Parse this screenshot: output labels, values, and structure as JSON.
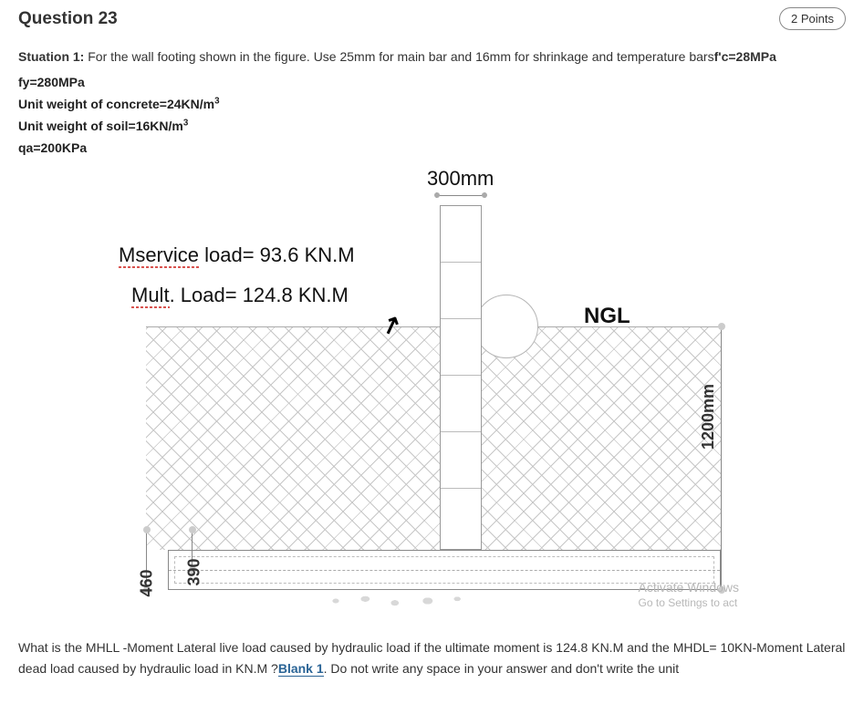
{
  "colors": {
    "text": "#333333",
    "heading": "#333333",
    "badge_border": "#888888",
    "wavy_red": "#d9534f",
    "link_blue": "#2a6496",
    "diagram_line": "#888888",
    "diagram_light": "#bbbbbb",
    "watermark": "#b8b8b8",
    "background": "#ffffff"
  },
  "header": {
    "title": "Question 23",
    "points": "2 Points"
  },
  "situation": {
    "prefix_bold": "Stuation 1:",
    "text_main": " For the wall footing shown in the figure. Use 25mm for main bar and 16mm for shrinkage and temperature bars",
    "fc_label": "f'c=28MPa"
  },
  "params": {
    "fy": "fy=280MPa",
    "gamma_c_prefix": "Unit weight of concrete=24KN/m",
    "gamma_c_sup": "3",
    "gamma_s_prefix": "Unit weight of soil=16KN/m",
    "gamma_s_sup": "3",
    "qa": "qa=200KPa"
  },
  "figure": {
    "dim_top": "300mm",
    "service_prefix": "Mservice",
    "service_rest": " load= 93.6 KN.M",
    "mult_prefix": "Mult",
    "mult_rest": ". Load= 124.8 KN.M",
    "ngl": "NGL",
    "dim_1200": "1200mm",
    "dim_460": "460",
    "dim_390": "390",
    "watermark_line1": "Activate Windows",
    "watermark_line2": "Go to Settings to act"
  },
  "question": {
    "part1": "What is the MHLL -Moment Lateral live load caused by hydraulic load if the ultimate moment is 124.8 KN.M and the MHDL= 10KN-Moment Lateral dead load caused by hydraulic load in KN.M ?",
    "blank_label": "Blank 1",
    "part2": ". Do not write any space in your answer and don't write the unit"
  }
}
